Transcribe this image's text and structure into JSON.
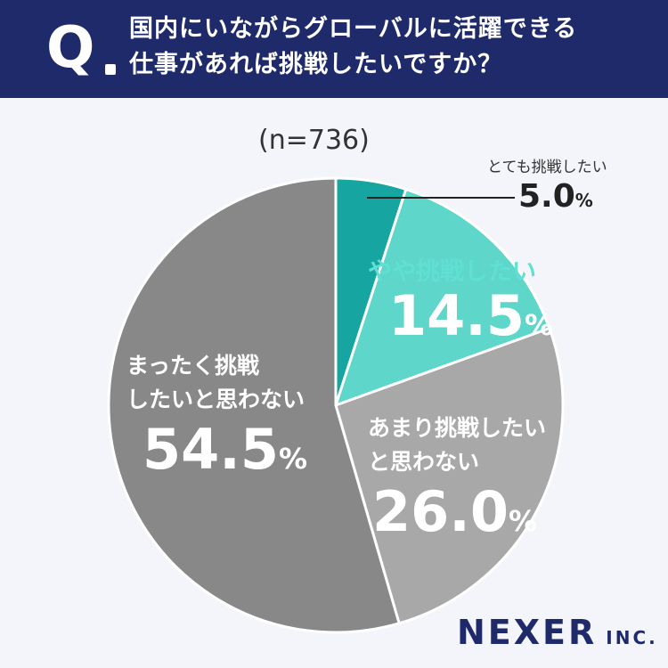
{
  "header": {
    "q_mark": "Q",
    "question_line1": "国内にいながらグローバルに活躍できる",
    "question_line2": "仕事があれば挑戦したいですか？"
  },
  "chart_data": {
    "type": "pie",
    "sample_note": "(n=736)",
    "start": "top",
    "direction": "clockwise",
    "slices": [
      {
        "label": "とても挑戦したい",
        "value": 5.0,
        "pct": "5.0",
        "color": "#17a5a1"
      },
      {
        "label": "やや挑戦したい",
        "value": 14.5,
        "pct": "14.5",
        "color": "#5ed6ca"
      },
      {
        "label_line1": "あまり挑戦したい",
        "label_line2": "と思わない",
        "value": 26.0,
        "pct": "26.0",
        "color": "#a8a8a8"
      },
      {
        "label_line1": "まったく挑戦",
        "label_line2": "したいと思わない",
        "value": 54.5,
        "pct": "54.5",
        "color": "#888888"
      }
    ],
    "percent_sign": "%"
  },
  "logo": {
    "main": "NEXER",
    "suffix": "INC."
  }
}
